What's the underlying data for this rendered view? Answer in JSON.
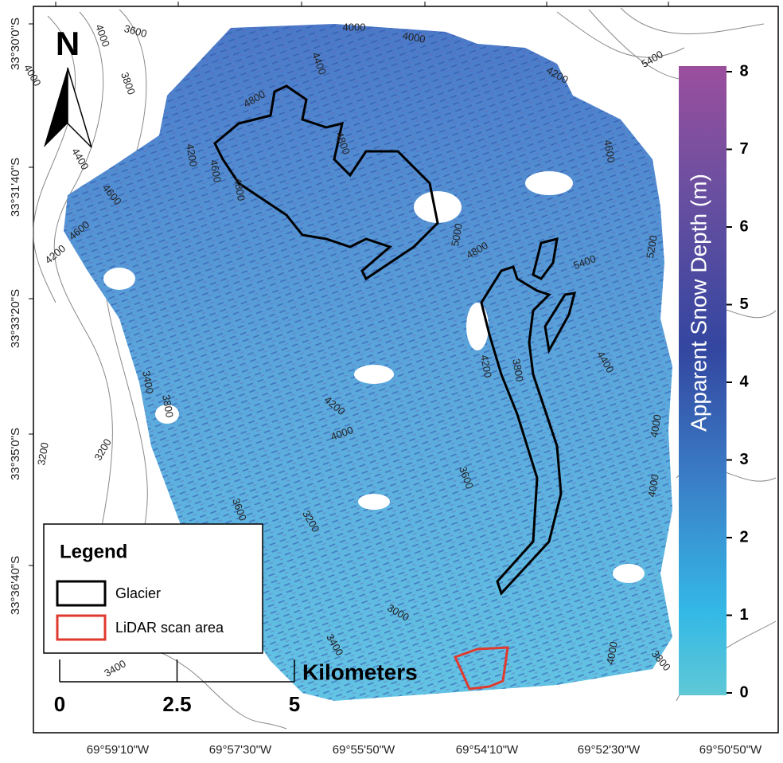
{
  "map": {
    "lat_labels": [
      "33°30'0\"S",
      "33°31'40\"S",
      "33°33'20\"S",
      "33°35'0\"S",
      "33°36'40\"S"
    ],
    "lon_labels": [
      "69°59'10\"W",
      "69°57'30\"W",
      "69°55'50\"W",
      "69°54'10\"W",
      "69°52'30\"W",
      "69°50'50\"W"
    ],
    "contour_labels": [
      "3600",
      "4000",
      "4000",
      "3800",
      "4000",
      "4000",
      "4400",
      "4800",
      "4800",
      "4200",
      "4600",
      "4800",
      "4400",
      "4600",
      "4600",
      "4200",
      "4200",
      "5400",
      "4600",
      "5000",
      "4800",
      "5400",
      "5200",
      "4200",
      "3800",
      "4400",
      "3400",
      "3800",
      "4200",
      "4000",
      "3600",
      "4000",
      "4000",
      "3200",
      "3200",
      "3200",
      "3000",
      "3400",
      "3400",
      "4000",
      "3800",
      "3600"
    ],
    "north": "N",
    "legend": {
      "title": "Legend",
      "items": [
        {
          "label": "Glacier",
          "color": "#000000"
        },
        {
          "label": "LiDAR scan area",
          "color": "#e03a2f"
        }
      ]
    },
    "scale_bar": {
      "ticks": [
        0,
        2.5,
        5
      ],
      "unit": "Kilometers"
    },
    "colorbar": {
      "title": "Apparent Snow Depth (m)",
      "lim": [
        0,
        8
      ],
      "ticks": [
        0,
        1,
        2,
        3,
        4,
        5,
        6,
        7,
        8
      ]
    }
  }
}
